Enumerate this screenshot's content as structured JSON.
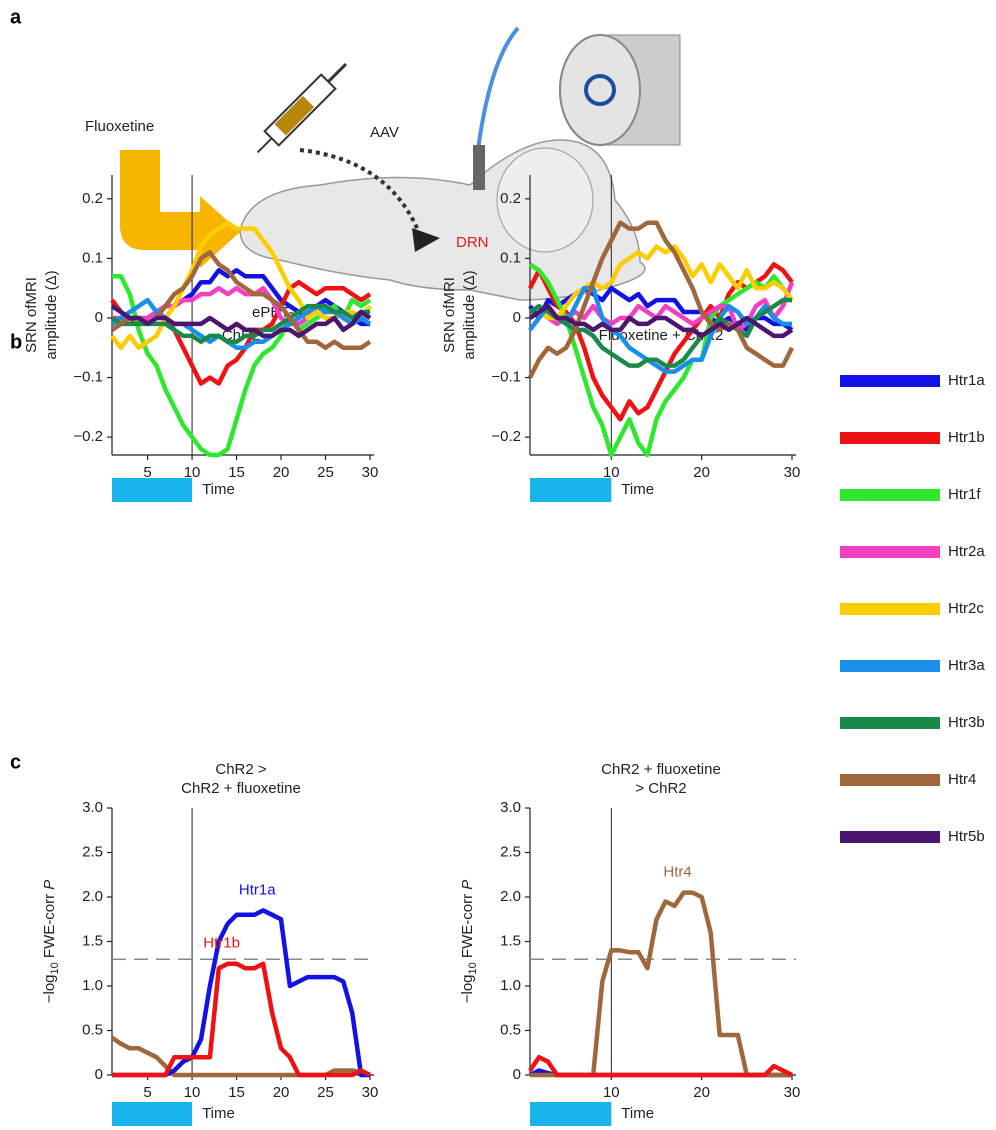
{
  "panel_labels": [
    "a",
    "b",
    "c"
  ],
  "diagram": {
    "drug": "Fluoxetine",
    "vector": "AAV",
    "target": "DRN",
    "mouse": "ePET-cre",
    "mouse_sup": "+/−"
  },
  "chart_data": [
    {
      "type": "line",
      "title": [
        "ChR2"
      ],
      "ylabel": [
        "SRN ofMRI",
        "amplitude (Δ)"
      ],
      "xlabel": "Time",
      "xlim": [
        1,
        30
      ],
      "xticks": [
        5,
        10,
        15,
        20,
        25,
        30
      ],
      "ylim": [
        -0.23,
        0.24
      ],
      "yticks": [
        {
          "value": -0.2,
          "label": "−0.2"
        },
        {
          "value": -0.1,
          "label": "−0.1"
        },
        0,
        0.1,
        0.2
      ],
      "vline": 10,
      "legend": "right",
      "x": [
        1,
        2,
        3,
        4,
        5,
        6,
        7,
        8,
        9,
        10,
        11,
        12,
        13,
        14,
        15,
        16,
        17,
        18,
        19,
        20,
        21,
        22,
        23,
        24,
        25,
        26,
        27,
        28,
        29,
        30
      ],
      "series": [
        {
          "name": "Htr1a",
          "color": "#1212e6",
          "values": [
            -0.02,
            -0.01,
            0,
            -0.01,
            0,
            0.01,
            0.02,
            0.02,
            0.03,
            0.04,
            0.06,
            0.06,
            0.08,
            0.07,
            0.08,
            0.07,
            0.07,
            0.07,
            0.05,
            0.03,
            0.02,
            0.01,
            0,
            0.02,
            0.03,
            0.02,
            0.01,
            0,
            -0.01,
            -0.01
          ]
        },
        {
          "name": "Htr1b",
          "color": "#f01212",
          "values": [
            0.03,
            0.01,
            0,
            -0.01,
            0,
            0.01,
            0,
            -0.02,
            -0.05,
            -0.08,
            -0.11,
            -0.1,
            -0.11,
            -0.08,
            -0.07,
            -0.05,
            -0.02,
            -0.02,
            -0.01,
            0.02,
            0.05,
            0.06,
            0.05,
            0.04,
            0.05,
            0.05,
            0.05,
            0.04,
            0.03,
            0.04
          ]
        },
        {
          "name": "Htr1f",
          "color": "#2ee82e",
          "values": [
            0.07,
            0.07,
            0.04,
            -0.02,
            -0.06,
            -0.08,
            -0.12,
            -0.15,
            -0.18,
            -0.2,
            -0.22,
            -0.23,
            -0.23,
            -0.22,
            -0.17,
            -0.12,
            -0.08,
            -0.06,
            -0.05,
            -0.03,
            0,
            -0.02,
            -0.01,
            0,
            0.01,
            0.02,
            0,
            0.03,
            0.02,
            0.03
          ]
        },
        {
          "name": "Htr2a",
          "color": "#f23fc4",
          "values": [
            0,
            0,
            0,
            0,
            0,
            0.01,
            0.02,
            0.02,
            0.03,
            0.03,
            0.04,
            0.04,
            0.05,
            0.04,
            0.05,
            0.04,
            0.04,
            0.05,
            0.03,
            0,
            -0.01,
            -0.01,
            0,
            0.02,
            0.02,
            0.01,
            0.01,
            0,
            0.01,
            0
          ]
        },
        {
          "name": "Htr2c",
          "color": "#ffcc00",
          "values": [
            -0.03,
            -0.05,
            -0.03,
            -0.05,
            -0.04,
            -0.03,
            0,
            0.02,
            0.05,
            0.08,
            0.12,
            0.14,
            0.15,
            0.16,
            0.15,
            0.15,
            0.15,
            0.13,
            0.11,
            0.08,
            0.05,
            0.03,
            0,
            0.01,
            0,
            0,
            0.01,
            0.01,
            0,
            0.02
          ]
        },
        {
          "name": "Htr3a",
          "color": "#1a8fe8",
          "values": [
            -0.01,
            0,
            0.01,
            0.02,
            0.03,
            0.01,
            0,
            -0.01,
            -0.01,
            -0.02,
            -0.03,
            -0.04,
            -0.03,
            -0.04,
            -0.05,
            -0.05,
            -0.04,
            -0.04,
            -0.03,
            -0.02,
            -0.01,
            0,
            0.01,
            0.02,
            0.01,
            0.01,
            0,
            -0.01,
            0,
            -0.01
          ]
        },
        {
          "name": "Htr3b",
          "color": "#1a8a4a",
          "values": [
            0,
            -0.01,
            -0.01,
            -0.01,
            -0.01,
            -0.01,
            -0.01,
            -0.02,
            -0.03,
            -0.03,
            -0.04,
            -0.03,
            -0.03,
            -0.04,
            -0.04,
            -0.03,
            -0.03,
            -0.02,
            -0.02,
            -0.01,
            0,
            0.01,
            0.02,
            0.02,
            0.02,
            0.01,
            0.01,
            0,
            0.01,
            0.01
          ]
        },
        {
          "name": "Htr4",
          "color": "#a0663c",
          "values": [
            -0.02,
            -0.01,
            0,
            0,
            -0.01,
            0,
            0.02,
            0.04,
            0.05,
            0.07,
            0.1,
            0.11,
            0.09,
            0.08,
            0.06,
            0.05,
            0.04,
            0.04,
            0.03,
            0.02,
            0,
            -0.02,
            -0.04,
            -0.04,
            -0.05,
            -0.04,
            -0.05,
            -0.05,
            -0.05,
            -0.04
          ]
        },
        {
          "name": "Htr5b",
          "color": "#4a1670",
          "values": [
            0.02,
            0.01,
            0,
            0,
            -0.01,
            0,
            0,
            -0.01,
            -0.01,
            -0.01,
            -0.01,
            0,
            -0.01,
            -0.02,
            -0.01,
            -0.02,
            -0.02,
            -0.03,
            -0.03,
            -0.02,
            -0.02,
            -0.03,
            -0.02,
            -0.01,
            -0.01,
            0,
            -0.02,
            -0.01,
            0.01,
            0
          ]
        }
      ]
    },
    {
      "type": "line",
      "title": [
        "Fluoxetine + ChR2"
      ],
      "ylabel": [
        "SRN ofMRI",
        "amplitude (Δ)"
      ],
      "xlabel": "Time",
      "xlim": [
        1,
        30
      ],
      "xticks": [
        10,
        20,
        30
      ],
      "ylim": [
        -0.23,
        0.24
      ],
      "yticks": [
        {
          "value": -0.2,
          "label": "−0.2"
        },
        {
          "value": -0.1,
          "label": "−0.1"
        },
        0,
        0.1,
        0.2
      ],
      "vline": 10,
      "x": [
        1,
        2,
        3,
        4,
        5,
        6,
        7,
        8,
        9,
        10,
        11,
        12,
        13,
        14,
        15,
        16,
        17,
        18,
        19,
        20,
        21,
        22,
        23,
        24,
        25,
        26,
        27,
        28,
        29,
        30
      ],
      "series": [
        {
          "color": "#1212e6",
          "values": [
            0.02,
            0,
            0.03,
            0.02,
            0.03,
            0.04,
            0.05,
            0.04,
            0.03,
            0.05,
            0.04,
            0.03,
            0.04,
            0.02,
            0.03,
            0.03,
            0.03,
            0.01,
            0.01,
            0.01,
            0,
            -0.01,
            0,
            -0.01,
            -0.02,
            0,
            0,
            -0.01,
            -0.01,
            -0.02
          ]
        },
        {
          "color": "#f01212",
          "values": [
            0.05,
            0.08,
            0.05,
            0.02,
            0.01,
            -0.01,
            -0.05,
            -0.1,
            -0.13,
            -0.15,
            -0.17,
            -0.14,
            -0.16,
            -0.15,
            -0.12,
            -0.09,
            -0.06,
            -0.04,
            -0.02,
            0,
            0.02,
            0,
            0.04,
            0.06,
            0.05,
            0.06,
            0.07,
            0.09,
            0.08,
            0.06
          ]
        },
        {
          "color": "#2ee82e",
          "values": [
            0.09,
            0.08,
            0.06,
            0.03,
            0,
            -0.05,
            -0.1,
            -0.15,
            -0.18,
            -0.23,
            -0.2,
            -0.17,
            -0.21,
            -0.23,
            -0.17,
            -0.14,
            -0.12,
            -0.1,
            -0.07,
            -0.07,
            0,
            0.02,
            0.03,
            0.04,
            0.05,
            0.06,
            0.05,
            0.07,
            0.05,
            0.03
          ]
        },
        {
          "color": "#f23fc4",
          "values": [
            0,
            0.01,
            0,
            -0.01,
            0,
            0.01,
            0,
            0.02,
            0,
            -0.01,
            0,
            0,
            0.02,
            0.01,
            0,
            0.02,
            0.01,
            0,
            -0.01,
            0,
            0.01,
            0.02,
            0.02,
            -0.02,
            -0.01,
            0.02,
            0.03,
            0,
            0.02,
            0.06
          ]
        },
        {
          "color": "#ffcc00",
          "values": [
            0,
            0.01,
            0,
            0,
            0.02,
            0.04,
            0.05,
            0.06,
            0.05,
            0.06,
            0.09,
            0.1,
            0.11,
            0.1,
            0.12,
            0.11,
            0.12,
            0.1,
            0.07,
            0.09,
            0.06,
            0.09,
            0.07,
            0.05,
            0.08,
            0.05,
            0.05,
            0.06,
            0.05,
            0.03
          ]
        },
        {
          "color": "#1a8fe8",
          "values": [
            -0.02,
            0,
            0.02,
            0,
            -0.01,
            0.02,
            0.05,
            0.05,
            0,
            -0.02,
            -0.03,
            -0.05,
            -0.06,
            -0.07,
            -0.08,
            -0.09,
            -0.09,
            -0.08,
            -0.07,
            -0.07,
            -0.03,
            0,
            0.02,
            0.01,
            -0.01,
            0,
            0.02,
            0,
            -0.01,
            -0.01
          ]
        },
        {
          "color": "#1a8a4a",
          "values": [
            0.01,
            0.02,
            0.01,
            0,
            -0.01,
            -0.02,
            -0.02,
            -0.03,
            -0.05,
            -0.06,
            -0.07,
            -0.08,
            -0.08,
            -0.07,
            -0.07,
            -0.08,
            -0.08,
            -0.07,
            -0.05,
            -0.03,
            -0.02,
            0,
            -0.01,
            -0.02,
            -0.03,
            0,
            0.01,
            0.02,
            0.03,
            0.03
          ]
        },
        {
          "color": "#a0663c",
          "values": [
            -0.1,
            -0.07,
            -0.05,
            -0.06,
            -0.05,
            -0.02,
            0.02,
            0.06,
            0.1,
            0.13,
            0.16,
            0.15,
            0.15,
            0.16,
            0.16,
            0.13,
            0.11,
            0.08,
            0.05,
            0.01,
            -0.01,
            -0.02,
            -0.01,
            -0.02,
            -0.05,
            -0.06,
            -0.07,
            -0.08,
            -0.08,
            -0.05
          ]
        },
        {
          "color": "#4a1670",
          "values": [
            0,
            0.01,
            0.02,
            0,
            0,
            -0.01,
            -0.01,
            -0.02,
            -0.01,
            -0.02,
            -0.02,
            0,
            -0.01,
            -0.01,
            0,
            0,
            -0.01,
            -0.02,
            -0.02,
            -0.03,
            -0.02,
            -0.01,
            -0.02,
            -0.01,
            0,
            -0.01,
            -0.02,
            -0.03,
            -0.03,
            -0.02
          ]
        }
      ]
    },
    {
      "type": "line",
      "title": [
        "ChR2 >",
        "ChR2 + fluoxetine"
      ],
      "ylabel": [
        "−log",
        "10",
        " FWE-corr ",
        "P"
      ],
      "xlabel": "Time",
      "xlim": [
        1,
        30
      ],
      "xticks": [
        5,
        10,
        15,
        20,
        25,
        30
      ],
      "ylim": [
        0,
        3
      ],
      "yticks": [
        0,
        0.5,
        {
          "value": 1,
          "label": "1.0"
        },
        1.5,
        {
          "value": 2,
          "label": "2.0"
        },
        2.5,
        {
          "value": 3,
          "label": "3.0"
        }
      ],
      "vline": 10,
      "hline": 1.3,
      "x": [
        1,
        2,
        3,
        4,
        5,
        6,
        7,
        8,
        9,
        10,
        11,
        12,
        13,
        14,
        15,
        16,
        17,
        18,
        19,
        20,
        21,
        22,
        23,
        24,
        25,
        26,
        27,
        28,
        29,
        30
      ],
      "series": [
        {
          "color": "#a0663c",
          "values": [
            0.42,
            0.35,
            0.3,
            0.3,
            0.25,
            0.2,
            0.1,
            0,
            0,
            0,
            0,
            0,
            0,
            0,
            0,
            0,
            0,
            0,
            0,
            0,
            0,
            0,
            0,
            0,
            0,
            0.05,
            0.05,
            0.05,
            0.03,
            0
          ]
        },
        {
          "name": "Htr1a",
          "color": "#1212e6",
          "values": [
            0,
            0,
            0,
            0,
            0,
            0,
            0,
            0.05,
            0.15,
            0.2,
            0.4,
            1,
            1.5,
            1.7,
            1.8,
            1.8,
            1.8,
            1.85,
            1.8,
            1.75,
            1,
            1.05,
            1.1,
            1.1,
            1.1,
            1.1,
            1.05,
            0.7,
            0,
            0
          ]
        },
        {
          "name": "Htr1b",
          "color": "#f01212",
          "values": [
            0,
            0,
            0,
            0,
            0,
            0,
            0,
            0.2,
            0.2,
            0.2,
            0.2,
            0.2,
            1.2,
            1.25,
            1.25,
            1.2,
            1.2,
            1.25,
            0.7,
            0.3,
            0.2,
            0,
            0,
            0,
            0,
            0,
            0,
            0,
            0.05,
            0
          ]
        }
      ]
    },
    {
      "type": "line",
      "title": [
        "ChR2 + fluoxetine",
        "> ChR2"
      ],
      "ylabel": [
        "−log",
        "10",
        " FWE-corr ",
        "P"
      ],
      "xlabel": "Time",
      "xlim": [
        1,
        30
      ],
      "xticks": [
        10,
        20,
        30
      ],
      "ylim": [
        0,
        3
      ],
      "yticks": [
        0,
        0.5,
        {
          "value": 1,
          "label": "1.0"
        },
        1.5,
        {
          "value": 2,
          "label": "2.0"
        },
        2.5,
        {
          "value": 3,
          "label": "3.0"
        }
      ],
      "vline": 10,
      "hline": 1.3,
      "x": [
        1,
        2,
        3,
        4,
        5,
        6,
        7,
        8,
        9,
        10,
        11,
        12,
        13,
        14,
        15,
        16,
        17,
        18,
        19,
        20,
        21,
        22,
        23,
        24,
        25,
        26,
        27,
        28,
        29,
        30
      ],
      "series": [
        {
          "color": "#1212e6",
          "values": [
            0,
            0.05,
            0.02,
            0,
            0,
            0,
            0,
            0,
            0,
            0,
            0,
            0,
            0,
            0,
            0,
            0,
            0,
            0,
            0,
            0,
            0,
            0,
            0,
            0,
            0,
            0,
            0,
            0,
            0,
            0
          ]
        },
        {
          "name": "Htr4",
          "color": "#a0663c",
          "values": [
            0,
            0,
            0,
            0,
            0,
            0,
            0,
            0,
            1.05,
            1.4,
            1.4,
            1.38,
            1.38,
            1.2,
            1.75,
            1.95,
            1.9,
            2.05,
            2.05,
            2,
            1.6,
            0.45,
            0.45,
            0.45,
            0,
            0,
            0,
            0,
            0,
            0
          ]
        },
        {
          "color": "#f01212",
          "values": [
            0.05,
            0.2,
            0.15,
            0,
            0,
            0,
            0,
            0,
            0,
            0,
            0,
            0,
            0,
            0,
            0,
            0,
            0,
            0,
            0,
            0,
            0,
            0,
            0,
            0,
            0,
            0,
            0,
            0.1,
            0.05,
            0
          ]
        }
      ]
    }
  ]
}
